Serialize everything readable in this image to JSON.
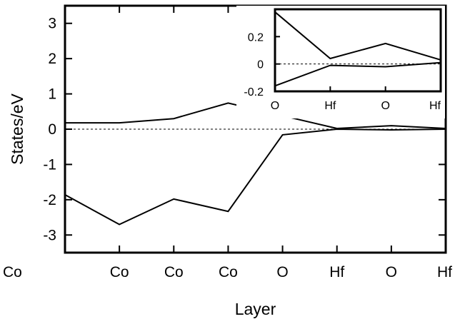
{
  "chart_data": [
    {
      "type": "line",
      "xlabel": "Layer",
      "ylabel": "States/eV",
      "categories": [
        "Co",
        "Co",
        "Co",
        "Co",
        "O",
        "Hf",
        "O",
        "Hf"
      ],
      "ylim": [
        -3.5,
        3.5
      ],
      "yticks": [
        -3,
        -2,
        -1,
        0,
        1,
        2,
        3
      ],
      "ytick_labels": [
        "-3",
        "-2",
        "-1",
        "0",
        "1",
        "2",
        "3"
      ],
      "grid": false,
      "reference_line": {
        "y": 0,
        "style": "dashed"
      },
      "series": [
        {
          "values": [
            0.18,
            0.18,
            0.3,
            0.74,
            0.38,
            0.02,
            0.1,
            0.02
          ]
        },
        {
          "values": [
            -1.86,
            -2.7,
            -1.98,
            -2.33,
            -0.16,
            0.0,
            -0.02,
            0.0
          ]
        }
      ]
    },
    {
      "type": "line",
      "role": "inset",
      "categories": [
        "O",
        "Hf",
        "O",
        "Hf"
      ],
      "ylim": [
        -0.2,
        0.4
      ],
      "yticks": [
        -0.2,
        0,
        0.2
      ],
      "ytick_labels": [
        "-0.2",
        "0",
        "0.2"
      ],
      "grid": false,
      "reference_line": {
        "y": 0,
        "style": "dashed"
      },
      "series": [
        {
          "values": [
            0.38,
            0.04,
            0.15,
            0.03
          ]
        },
        {
          "values": [
            -0.16,
            -0.01,
            -0.02,
            0.01
          ]
        }
      ]
    }
  ]
}
